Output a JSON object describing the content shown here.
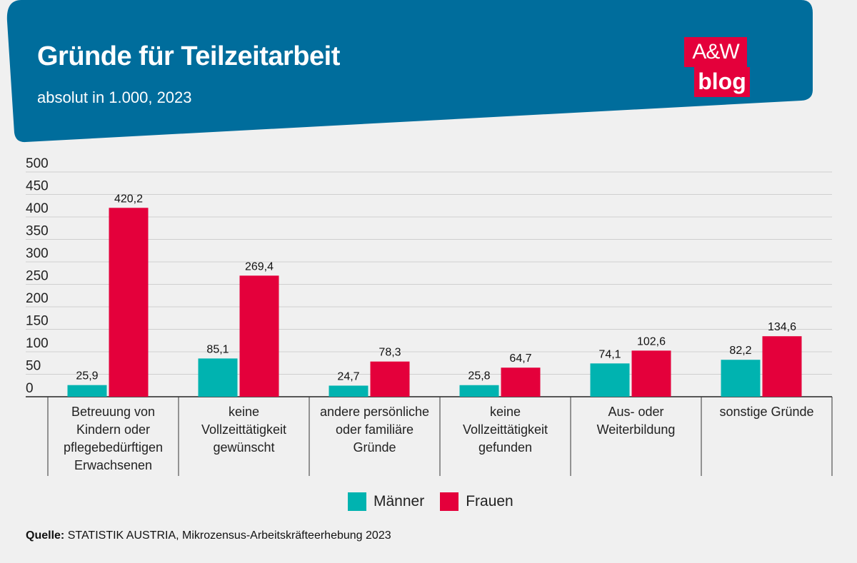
{
  "header": {
    "title": "Gründe für Teilzeitarbeit",
    "subtitle": "absolut in 1.000, 2023",
    "bg_color": "#006d9c"
  },
  "logo": {
    "line1": "A&W",
    "line2": "blog",
    "color": "#e4003b"
  },
  "chart_data": {
    "type": "bar",
    "title": "Gründe für Teilzeitarbeit",
    "subtitle": "absolut in 1.000, 2023",
    "categories": [
      [
        "Betreuung von",
        "Kindern oder",
        "pflegebedürftigen",
        "Erwachsenen"
      ],
      [
        "keine",
        "Vollzeittätigkeit",
        "gewünscht"
      ],
      [
        "andere persönliche",
        "oder familiäre",
        "Gründe"
      ],
      [
        "keine",
        "Vollzeittätigkeit",
        "gefunden"
      ],
      [
        "Aus- oder",
        "Weiterbildung"
      ],
      [
        "sonstige Gründe"
      ]
    ],
    "series": [
      {
        "name": "Männer",
        "color": "#00b3b0",
        "values": [
          25.9,
          85.1,
          24.7,
          25.8,
          74.1,
          82.2
        ],
        "labels": [
          "25,9",
          "85,1",
          "24,7",
          "25,8",
          "74,1",
          "82,2"
        ]
      },
      {
        "name": "Frauen",
        "color": "#e4003b",
        "values": [
          420.2,
          269.4,
          78.3,
          64.7,
          102.6,
          134.6
        ],
        "labels": [
          "420,2",
          "269,4",
          "78,3",
          "64,7",
          "102,6",
          "134,6"
        ]
      }
    ],
    "ylim": [
      0,
      500
    ],
    "yticks": [
      0,
      50,
      100,
      150,
      200,
      250,
      300,
      350,
      400,
      450,
      500
    ],
    "grid": true,
    "legend_position": "bottom-center",
    "xlabel": "",
    "ylabel": ""
  },
  "legend": {
    "men_label": "Männer",
    "women_label": "Frauen"
  },
  "source": {
    "label": "Quelle:",
    "text": "STATISTIK AUSTRIA, Mikrozensus-Arbeitskräfteerhebung 2023"
  }
}
